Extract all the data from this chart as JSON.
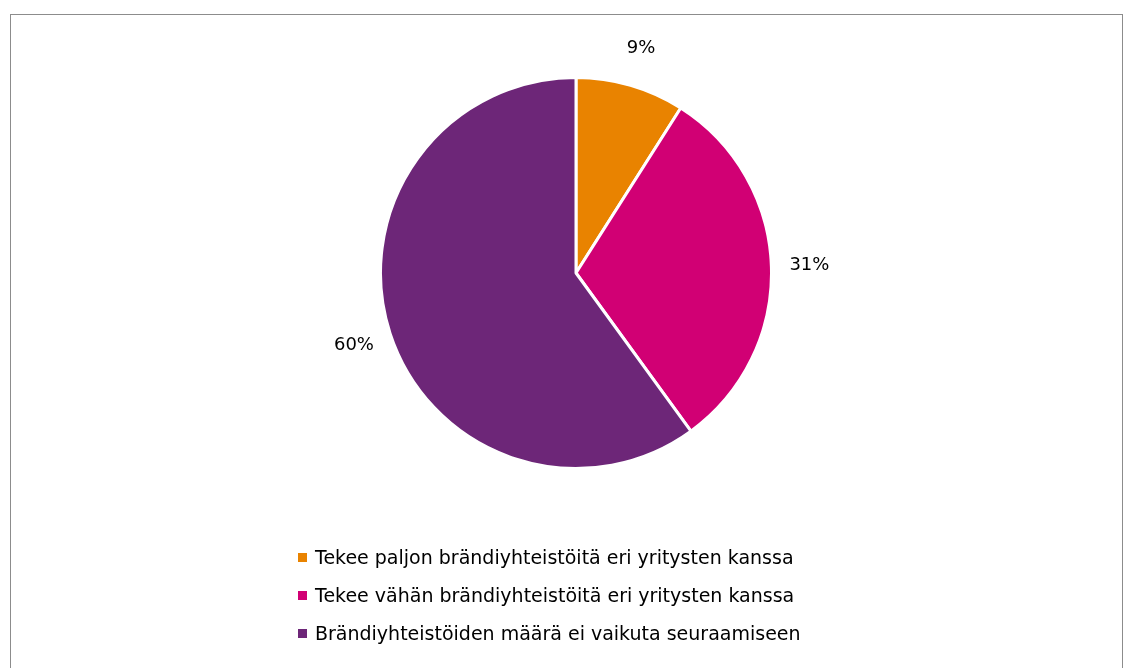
{
  "chart_data": {
    "type": "pie",
    "categories": [
      "Tekee paljon brändiyhteistöitä eri yritysten kanssa",
      "Tekee vähän brändiyhteistöitä eri yritysten kanssa",
      "Brändiyhteistöiden määrä ei vaikuta seuraamiseen"
    ],
    "values": [
      9,
      31,
      60
    ],
    "value_labels": [
      "9%",
      "31%",
      "60%"
    ],
    "colors": [
      "#e98300",
      "#d10074",
      "#6d2678"
    ],
    "legend": "bottom"
  }
}
